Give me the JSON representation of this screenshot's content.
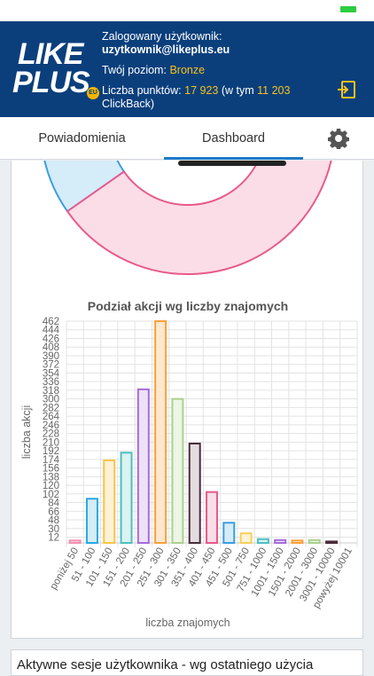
{
  "header": {
    "logo_line1": "LIKE",
    "logo_line2": "PLUS",
    "logo_badge": "EU",
    "logged_label": "Zalogowany użytkownik:",
    "username": "uzytkownik@likeplus.eu",
    "level_label": "Twój poziom:",
    "level_value": "Bronze",
    "points_label": "Liczba punktów:",
    "points_value": "17 923",
    "points_mid": "(w tym",
    "clickback_value": "11 203",
    "clickback_label": "ClickBack)"
  },
  "tabs": {
    "notifications": "Powiadomienia",
    "dashboard": "Dashboard"
  },
  "colors": {
    "header_bg": "#0b3f7c",
    "accent_yellow": "#f7c21a",
    "tab_active": "#1e7ac8"
  },
  "chart_data": {
    "type": "bar",
    "title": "Podział akcji wg liczby znajomych",
    "xlabel": "liczba znajomych",
    "ylabel": "liczba akcji",
    "ylim": [
      0,
      462
    ],
    "y_ticks": [
      "12",
      "30",
      "48",
      "66",
      "84",
      "102",
      "120",
      "138",
      "156",
      "174",
      "192",
      "210",
      "228",
      "246",
      "264",
      "282",
      "300",
      "318",
      "336",
      "354",
      "372",
      "390",
      "408",
      "426",
      "444",
      "462"
    ],
    "categories": [
      "poniżej 50",
      "51 - 100",
      "101 - 150",
      "151 - 200",
      "201 - 250",
      "251 - 300",
      "301 - 350",
      "351 - 400",
      "401 - 450",
      "451 - 500",
      "501 - 750",
      "751 - 1000",
      "1001 - 1500",
      "1501 - 2000",
      "2001 - 3000",
      "3001 - 10000",
      "powyżej 10001"
    ],
    "values": [
      5,
      92,
      172,
      188,
      320,
      462,
      300,
      207,
      106,
      42,
      20,
      8,
      6,
      5,
      6,
      3,
      0
    ],
    "bar_colors": [
      "#f48fb1",
      "#29a8e0",
      "#f7c64a",
      "#4dbfbf",
      "#a66bdb",
      "#f7a23c",
      "#a9d18e",
      "#4a2c3a",
      "#e85a8a",
      "#3c9ee0",
      "#f7d05a",
      "#4cc0c0",
      "#a66bdb",
      "#f7a23c",
      "#a9d18e",
      "#4a2c3a",
      "#e85a8a"
    ],
    "bar_fills": [
      "#fde4ec",
      "#d5ecf9",
      "#fdf2d6",
      "#dbf2f2",
      "#ede1f8",
      "#fde7cf",
      "#edf5e5",
      "#e3dde0",
      "#fbdde8",
      "#d8ebf9",
      "#fdf4d8",
      "#dbf2f2",
      "#ede1f8",
      "#fde7cf",
      "#edf5e5",
      "#e3dde0",
      "#fbdde8"
    ],
    "grid": true,
    "legend": "none"
  },
  "donut": {
    "segments": [
      {
        "value": 35,
        "color": "#3c9ee0",
        "fill": "#d5ecf9"
      },
      {
        "value": 65,
        "color": "#e85a8a",
        "fill": "#fbdde8"
      }
    ]
  },
  "section2_title": "Aktywne sesje użytkownika - wg ostatniego użycia"
}
